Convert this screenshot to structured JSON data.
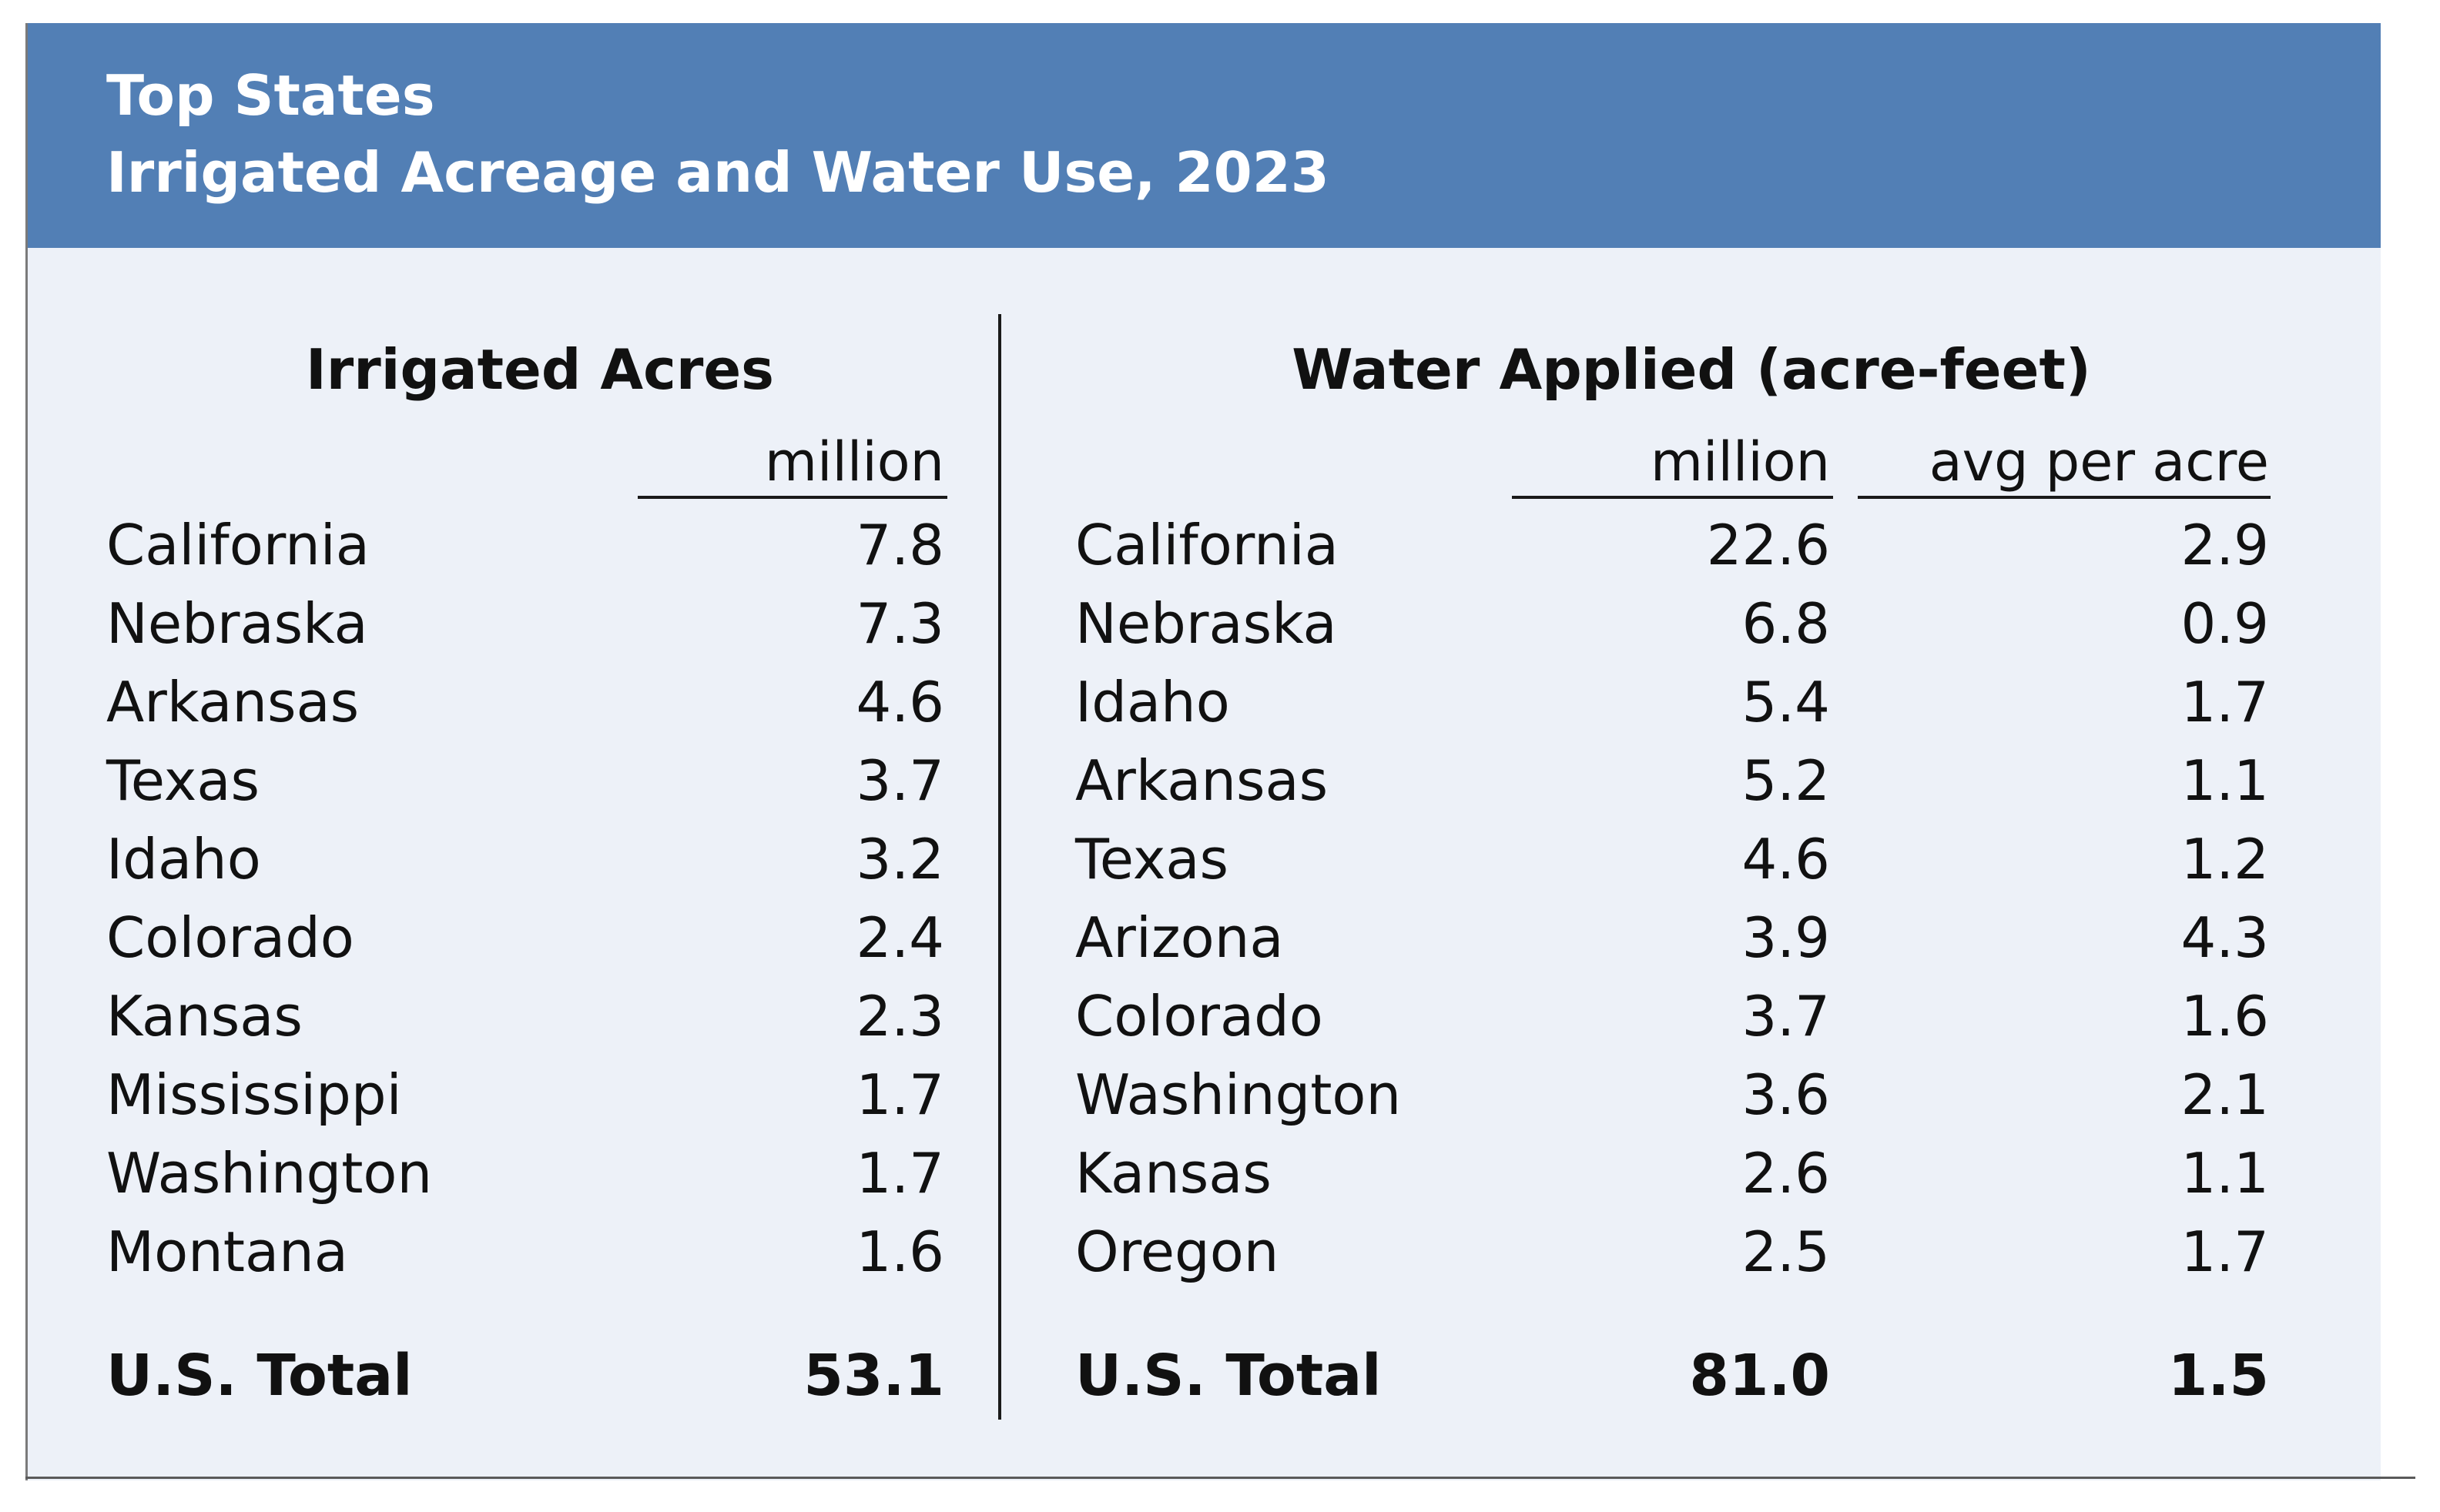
{
  "header": {
    "line1": "Top States",
    "line2": "Irrigated Acreage and Water Use, 2023"
  },
  "left": {
    "title": "Irrigated Acres",
    "unit_label": "million",
    "rows": [
      {
        "state": "California",
        "value": "7.8"
      },
      {
        "state": "Nebraska",
        "value": "7.3"
      },
      {
        "state": "Arkansas",
        "value": "4.6"
      },
      {
        "state": "Texas",
        "value": "3.7"
      },
      {
        "state": "Idaho",
        "value": "3.2"
      },
      {
        "state": "Colorado",
        "value": "2.4"
      },
      {
        "state": "Kansas",
        "value": "2.3"
      },
      {
        "state": "Mississippi",
        "value": "1.7"
      },
      {
        "state": "Washington",
        "value": "1.7"
      },
      {
        "state": "Montana",
        "value": "1.6"
      }
    ],
    "total": {
      "label": "U.S. Total",
      "value": "53.1"
    }
  },
  "right": {
    "title": "Water Applied (acre-feet)",
    "unit_label_1": "million",
    "unit_label_2": "avg per acre",
    "rows": [
      {
        "state": "California",
        "million": "22.6",
        "avg": "2.9"
      },
      {
        "state": "Nebraska",
        "million": "6.8",
        "avg": "0.9"
      },
      {
        "state": "Idaho",
        "million": "5.4",
        "avg": "1.7"
      },
      {
        "state": "Arkansas",
        "million": "5.2",
        "avg": "1.1"
      },
      {
        "state": "Texas",
        "million": "4.6",
        "avg": "1.2"
      },
      {
        "state": "Arizona",
        "million": "3.9",
        "avg": "4.3"
      },
      {
        "state": "Colorado",
        "million": "3.7",
        "avg": "1.6"
      },
      {
        "state": "Washington",
        "million": "3.6",
        "avg": "2.1"
      },
      {
        "state": "Kansas",
        "million": "2.6",
        "avg": "1.1"
      },
      {
        "state": "Oregon",
        "million": "2.5",
        "avg": "1.7"
      }
    ],
    "total": {
      "label": "U.S. Total",
      "million": "81.0",
      "avg": "1.5"
    }
  }
}
